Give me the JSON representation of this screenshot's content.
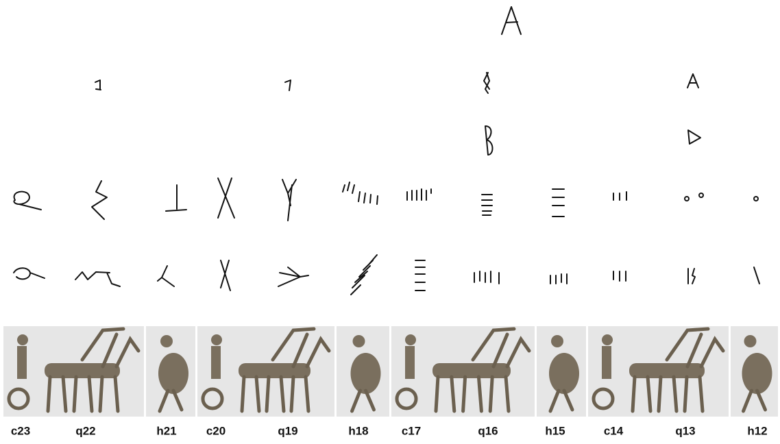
{
  "labels": [
    "c23",
    "q22",
    "h21",
    "c20",
    "q19",
    "h18",
    "c17",
    "q16",
    "h15",
    "c14",
    "q13",
    "h12"
  ]
}
